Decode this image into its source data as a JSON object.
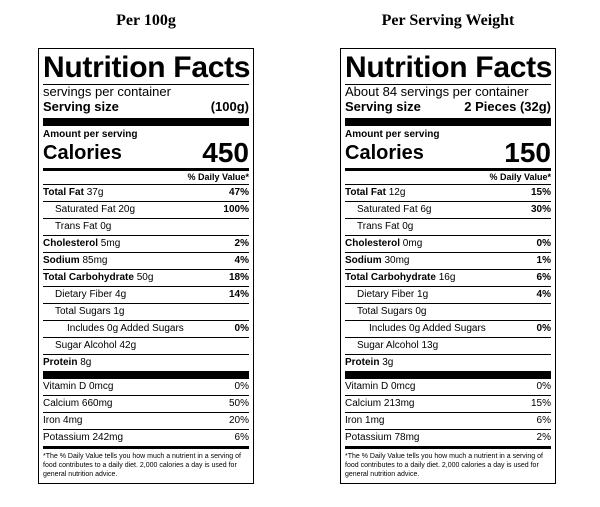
{
  "headings": {
    "left": "Per 100g",
    "right": "Per Serving Weight"
  },
  "common": {
    "title": "Nutrition Facts",
    "serving_size_label": "Serving size",
    "amount_per_serving": "Amount per serving",
    "calories_label": "Calories",
    "daily_value_header": "% Daily Value*",
    "footnote": "*The % Daily Value tells you how much a nutrient in a serving of food contributes to a daily diet. 2,000 calories a day is used for general nutrition advice."
  },
  "labels": {
    "total_fat": "Total Fat",
    "saturated_fat": "Saturated Fat",
    "trans_fat": "Trans Fat",
    "cholesterol": "Cholesterol",
    "sodium": "Sodium",
    "total_carbohydrate": "Total Carbohydrate",
    "dietary_fiber": "Dietary Fiber",
    "total_sugars": "Total Sugars",
    "added_sugars_prefix": "Includes",
    "added_sugars_suffix": "Added Sugars",
    "sugar_alcohol": "Sugar Alcohol",
    "protein": "Protein",
    "vitamin_d": "Vitamin D",
    "calcium": "Calcium",
    "iron": "Iron",
    "potassium": "Potassium"
  },
  "panels": [
    {
      "servings_per_container": "servings per container",
      "serving_size": "(100g)",
      "calories": "450",
      "total_fat": {
        "amount": "37g",
        "dv": "47%"
      },
      "saturated_fat": {
        "amount": "20g",
        "dv": "100%"
      },
      "trans_fat": {
        "amount": "0g"
      },
      "cholesterol": {
        "amount": "5mg",
        "dv": "2%"
      },
      "sodium": {
        "amount": "85mg",
        "dv": "4%"
      },
      "total_carbohydrate": {
        "amount": "50g",
        "dv": "18%"
      },
      "dietary_fiber": {
        "amount": "4g",
        "dv": "14%"
      },
      "total_sugars": {
        "amount": "1g"
      },
      "added_sugars": {
        "amount": "0g",
        "dv": "0%"
      },
      "sugar_alcohol": {
        "amount": "42g"
      },
      "protein": {
        "amount": "8g"
      },
      "vitamin_d": {
        "amount": "0mcg",
        "dv": "0%"
      },
      "calcium": {
        "amount": "660mg",
        "dv": "50%"
      },
      "iron": {
        "amount": "4mg",
        "dv": "20%"
      },
      "potassium": {
        "amount": "242mg",
        "dv": "6%"
      }
    },
    {
      "servings_per_container": "About 84 servings per container",
      "serving_size": "2 Pieces (32g)",
      "calories": "150",
      "total_fat": {
        "amount": "12g",
        "dv": "15%"
      },
      "saturated_fat": {
        "amount": "6g",
        "dv": "30%"
      },
      "trans_fat": {
        "amount": "0g"
      },
      "cholesterol": {
        "amount": "0mg",
        "dv": "0%"
      },
      "sodium": {
        "amount": "30mg",
        "dv": "1%"
      },
      "total_carbohydrate": {
        "amount": "16g",
        "dv": "6%"
      },
      "dietary_fiber": {
        "amount": "1g",
        "dv": "4%"
      },
      "total_sugars": {
        "amount": "0g"
      },
      "added_sugars": {
        "amount": "0g",
        "dv": "0%"
      },
      "sugar_alcohol": {
        "amount": "13g"
      },
      "protein": {
        "amount": "3g"
      },
      "vitamin_d": {
        "amount": "0mcg",
        "dv": "0%"
      },
      "calcium": {
        "amount": "213mg",
        "dv": "15%"
      },
      "iron": {
        "amount": "1mg",
        "dv": "6%"
      },
      "potassium": {
        "amount": "78mg",
        "dv": "2%"
      }
    }
  ]
}
